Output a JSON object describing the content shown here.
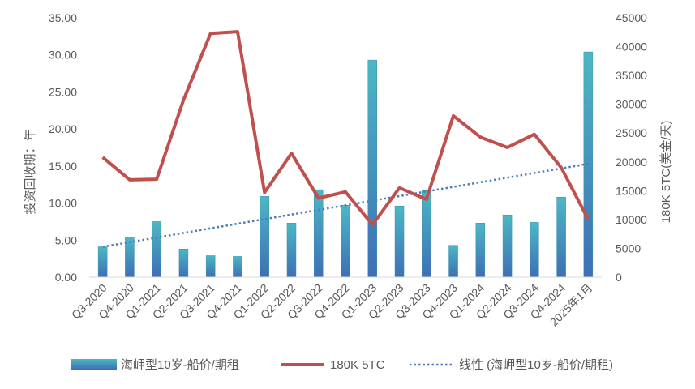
{
  "chart_data": {
    "type": "bar",
    "categories": [
      "Q3-2020",
      "Q4-2020",
      "Q1-2021",
      "Q2-2021",
      "Q3-2021",
      "Q4-2021",
      "Q1-2022",
      "Q2-2022",
      "Q3-2022",
      "Q4-2022",
      "Q1-2023",
      "Q2-2023",
      "Q3-2023",
      "Q4-2023",
      "Q1-2024",
      "Q2-2024",
      "Q3-2024",
      "Q4-2024",
      "2025年1月"
    ],
    "y_left": {
      "label": "投资回收期：年",
      "ticks": [
        "0.00",
        "5.00",
        "10.00",
        "15.00",
        "20.00",
        "25.00",
        "30.00",
        "35.00"
      ],
      "range": [
        0,
        35
      ]
    },
    "y_right": {
      "label": "180K 5TC(美金/天)",
      "ticks": [
        "0",
        "5000",
        "10000",
        "15000",
        "20000",
        "25000",
        "30000",
        "35000",
        "40000",
        "45000"
      ],
      "range": [
        0,
        45000
      ]
    },
    "series": [
      {
        "name": "海岬型10岁-船价/期租",
        "type": "bar",
        "axis": "left",
        "values": [
          4.1,
          5.4,
          7.5,
          3.8,
          2.9,
          2.8,
          10.9,
          7.3,
          11.8,
          9.7,
          29.3,
          9.6,
          11.7,
          4.3,
          7.3,
          8.4,
          7.4,
          10.8,
          30.4
        ]
      },
      {
        "name": "180K 5TC",
        "type": "line",
        "axis": "right",
        "color": "#c0504d",
        "values": [
          20800,
          16900,
          17000,
          30800,
          42300,
          42600,
          14700,
          21500,
          13700,
          14800,
          9100,
          15500,
          13500,
          28000,
          24300,
          22500,
          24800,
          19000,
          10000
        ]
      },
      {
        "name": "线性 (海岬型10岁-船价/期租)",
        "type": "trendline",
        "axis": "left",
        "color": "#4a7ebb",
        "start": 4.1,
        "end": 15.3
      }
    ],
    "legend_position": "bottom",
    "grid": false
  }
}
